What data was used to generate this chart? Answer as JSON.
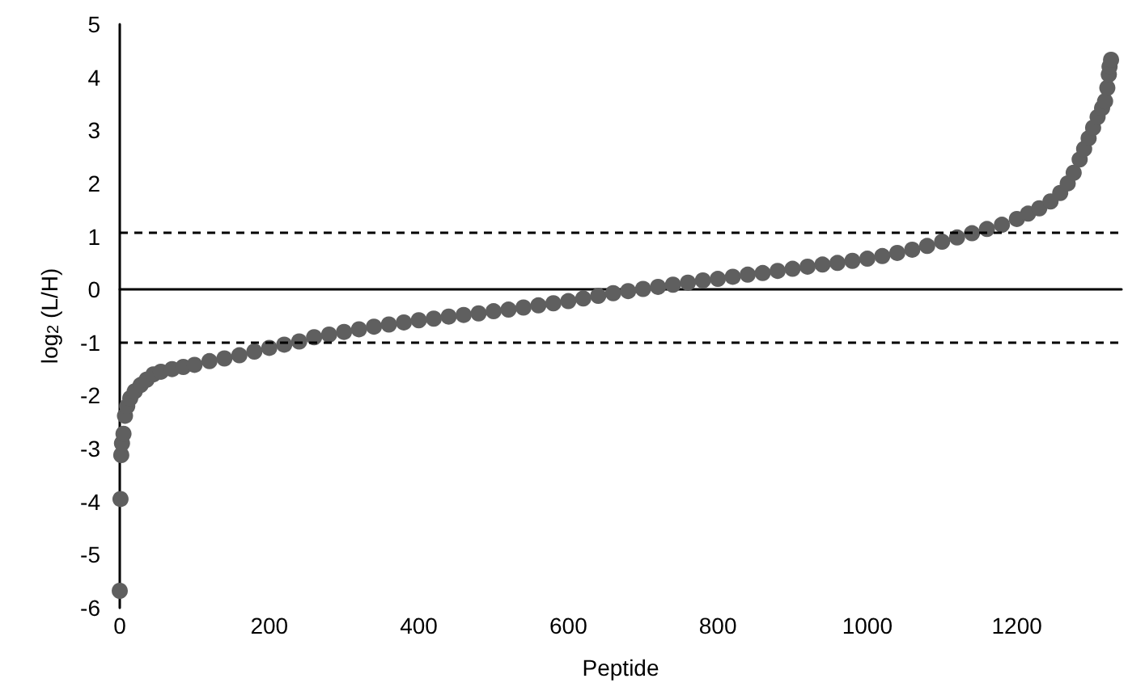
{
  "chart_data": {
    "type": "scatter",
    "xlabel": "Peptide",
    "ylabel": "log$_{2}$ (L/H)",
    "xlim": [
      0,
      1340
    ],
    "xticks": [
      0,
      200,
      400,
      600,
      800,
      1000,
      1200
    ],
    "ylim": [
      -6,
      5
    ],
    "yticks": [
      -6,
      -5,
      -4,
      -3,
      -2,
      -1,
      0,
      1,
      2,
      3,
      4,
      5
    ],
    "grid": false,
    "marker": "circle",
    "ref_lines": [
      {
        "axis": "y",
        "value": 1.07,
        "color": "#000000",
        "line_style": "dashed"
      },
      {
        "axis": "y",
        "value": -0.98,
        "color": "#000000",
        "line_style": "dashed"
      }
    ],
    "series": [
      {
        "color": "#5f5f5f",
        "x": [
          0,
          1,
          2,
          3,
          5,
          7,
          10,
          14,
          20,
          28,
          36,
          45,
          55,
          70,
          85,
          100,
          120,
          140,
          160,
          180,
          200,
          220,
          240,
          260,
          280,
          300,
          320,
          340,
          360,
          380,
          400,
          420,
          440,
          460,
          480,
          500,
          520,
          540,
          560,
          580,
          600,
          620,
          640,
          660,
          680,
          700,
          720,
          740,
          760,
          780,
          800,
          820,
          840,
          860,
          880,
          900,
          920,
          940,
          960,
          980,
          1000,
          1020,
          1040,
          1060,
          1080,
          1100,
          1120,
          1140,
          1160,
          1180,
          1200,
          1215,
          1230,
          1245,
          1258,
          1268,
          1276,
          1284,
          1290,
          1296,
          1302,
          1308,
          1314,
          1318,
          1321,
          1323,
          1324,
          1326
        ],
        "values": [
          -5.68,
          -3.95,
          -3.12,
          -2.9,
          -2.72,
          -2.38,
          -2.2,
          -2.05,
          -1.92,
          -1.8,
          -1.7,
          -1.6,
          -1.55,
          -1.5,
          -1.46,
          -1.42,
          -1.35,
          -1.3,
          -1.24,
          -1.17,
          -1.1,
          -1.04,
          -0.98,
          -0.9,
          -0.85,
          -0.8,
          -0.75,
          -0.7,
          -0.66,
          -0.62,
          -0.58,
          -0.55,
          -0.51,
          -0.48,
          -0.45,
          -0.41,
          -0.38,
          -0.34,
          -0.3,
          -0.26,
          -0.22,
          -0.17,
          -0.12,
          -0.07,
          -0.03,
          0.01,
          0.05,
          0.09,
          0.13,
          0.17,
          0.2,
          0.24,
          0.28,
          0.31,
          0.35,
          0.39,
          0.43,
          0.47,
          0.5,
          0.54,
          0.58,
          0.63,
          0.69,
          0.75,
          0.82,
          0.9,
          0.98,
          1.06,
          1.14,
          1.22,
          1.33,
          1.43,
          1.53,
          1.66,
          1.82,
          2.0,
          2.2,
          2.45,
          2.65,
          2.85,
          3.05,
          3.25,
          3.42,
          3.55,
          3.8,
          4.05,
          4.2,
          4.33
        ]
      }
    ]
  }
}
